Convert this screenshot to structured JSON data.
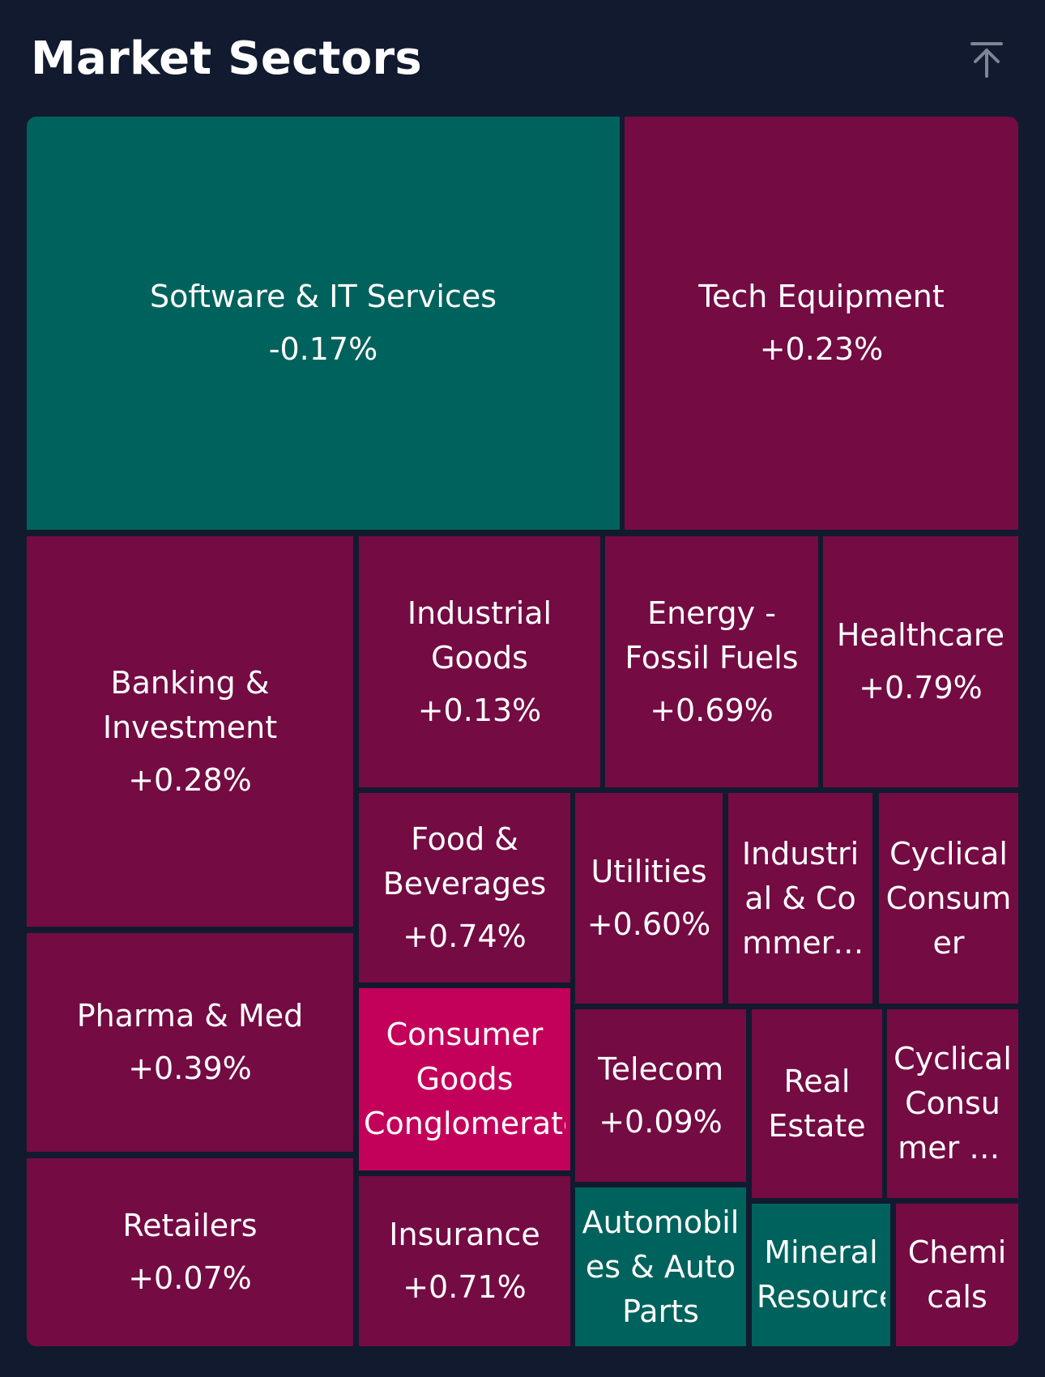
{
  "header": {
    "title": "Market Sectors",
    "collapse_icon": "arrow-up-to-top-icon"
  },
  "colors": {
    "background": "#121a30",
    "negative": "#00625c",
    "positive": "#740b43",
    "strong_positive": "#c3005a"
  },
  "chart_data": {
    "type": "treemap",
    "title": "Market Sectors",
    "sectors": [
      {
        "name": "Software & IT Services",
        "change": "-0.17%",
        "value": -0.17
      },
      {
        "name": "Tech Equipment",
        "change": "+0.23%",
        "value": 0.23
      },
      {
        "name": "Banking & Investment",
        "change": "+0.28%",
        "value": 0.28
      },
      {
        "name": "Industrial Goods",
        "change": "+0.13%",
        "value": 0.13
      },
      {
        "name": "Energy - Fossil Fuels",
        "change": "+0.69%",
        "value": 0.69
      },
      {
        "name": "Healthcare",
        "change": "+0.79%",
        "value": 0.79
      },
      {
        "name": "Food & Beverages",
        "change": "+0.74%",
        "value": 0.74
      },
      {
        "name": "Utilities",
        "change": "+0.60%",
        "value": 0.6
      },
      {
        "name": "Industrial & Commercial Services",
        "change": "",
        "value": null
      },
      {
        "name": "Cyclical Consumer",
        "change": "",
        "value": null
      },
      {
        "name": "Pharma & Med",
        "change": "+0.39%",
        "value": 0.39
      },
      {
        "name": "Consumer Goods Conglomerates",
        "change": "",
        "value": null
      },
      {
        "name": "Telecom",
        "change": "+0.09%",
        "value": 0.09
      },
      {
        "name": "Real Estate",
        "change": "",
        "value": null
      },
      {
        "name": "Cyclical Consumer Services",
        "change": "",
        "value": null
      },
      {
        "name": "Retailers",
        "change": "+0.07%",
        "value": 0.07
      },
      {
        "name": "Insurance",
        "change": "+0.71%",
        "value": 0.71
      },
      {
        "name": "Automobiles & Auto Parts",
        "change": "",
        "value": null
      },
      {
        "name": "Mineral Resources",
        "change": "",
        "value": null
      },
      {
        "name": "Chemicals",
        "change": "",
        "value": null
      }
    ]
  }
}
